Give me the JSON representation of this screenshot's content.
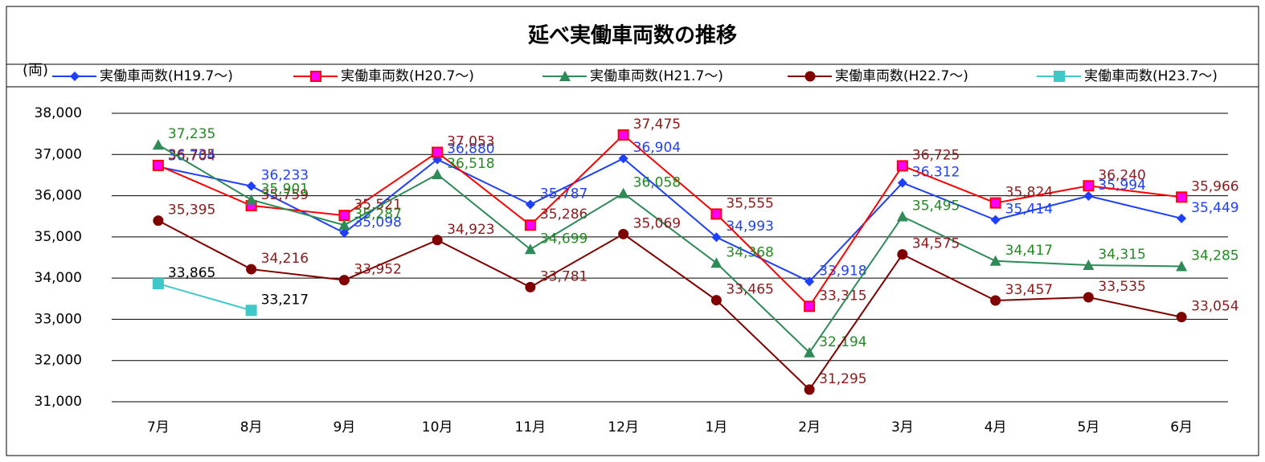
{
  "chart_data": {
    "type": "line",
    "title": "延べ実働車両数の推移",
    "y_label": "(両)",
    "categories": [
      "7月",
      "8月",
      "9月",
      "10月",
      "11月",
      "12月",
      "1月",
      "2月",
      "3月",
      "4月",
      "5月",
      "6月"
    ],
    "ylim": [
      31000,
      38000
    ],
    "yticks": [
      {
        "value": 31000,
        "label": "31,000"
      },
      {
        "value": 32000,
        "label": "32,000"
      },
      {
        "value": 33000,
        "label": "33,000"
      },
      {
        "value": 34000,
        "label": "34,000"
      },
      {
        "value": 35000,
        "label": "35,000"
      },
      {
        "value": 36000,
        "label": "36,000"
      },
      {
        "value": 37000,
        "label": "37,000"
      },
      {
        "value": 38000,
        "label": "38,000"
      }
    ],
    "grid": true,
    "legend": "top",
    "series": [
      {
        "name": "実働車両数(H19.7～)",
        "color": "#1f3fff",
        "marker": "diamond",
        "label_color": "#1f3fff",
        "values": [
          36704,
          36233,
          35098,
          36880,
          35787,
          36904,
          34993,
          33918,
          36312,
          35414,
          35994,
          35449
        ],
        "value_labels": [
          "36,704",
          "36,233",
          "35,098",
          "36,880",
          "35,787",
          "36,904",
          "34,993",
          "33,918",
          "36,312",
          "35,414",
          "35,994",
          "35,449"
        ]
      },
      {
        "name": "実働車両数(H20.7～)",
        "color": "#ff0000",
        "marker": "square",
        "label_color": "#8b1a1a",
        "values": [
          36735,
          35759,
          35521,
          37053,
          35286,
          37475,
          35555,
          33315,
          36725,
          35824,
          36240,
          35966
        ],
        "value_labels": [
          "36,735",
          "35,759",
          "35,521",
          "37,053",
          "35,286",
          "37,475",
          "35,555",
          "33,315",
          "36,725",
          "35,824",
          "36,240",
          "35,966"
        ]
      },
      {
        "name": "実働車両数(H21.7～)",
        "color": "#2e8b57",
        "marker": "triangle",
        "label_color": "#228b22",
        "values": [
          37235,
          35901,
          35287,
          36518,
          34699,
          36058,
          34368,
          32194,
          35495,
          34417,
          34315,
          34285
        ],
        "value_labels": [
          "37,235",
          "35,901",
          "35,287",
          "36,518",
          "34,699",
          "36,058",
          "34,368",
          "32,194",
          "35,495",
          "34,417",
          "34,315",
          "34,285"
        ]
      },
      {
        "name": "実働車両数(H22.7～)",
        "color": "#800000",
        "marker": "circle",
        "label_color": "#8b1a1a",
        "values": [
          35395,
          34216,
          33952,
          34923,
          33781,
          35069,
          33465,
          31295,
          34575,
          33457,
          33535,
          33054
        ],
        "value_labels": [
          "35,395",
          "34,216",
          "33,952",
          "34,923",
          "33,781",
          "35,069",
          "33,465",
          "31,295",
          "34,575",
          "33,457",
          "33,535",
          "33,054"
        ]
      },
      {
        "name": "実働車両数(H23.7～)",
        "color": "#40c8c8",
        "marker": "square",
        "label_color": "#000000",
        "values": [
          33865,
          33217,
          null,
          null,
          null,
          null,
          null,
          null,
          null,
          null,
          null,
          null
        ],
        "value_labels": [
          "33,865",
          "33,217",
          null,
          null,
          null,
          null,
          null,
          null,
          null,
          null,
          null,
          null
        ]
      }
    ]
  }
}
